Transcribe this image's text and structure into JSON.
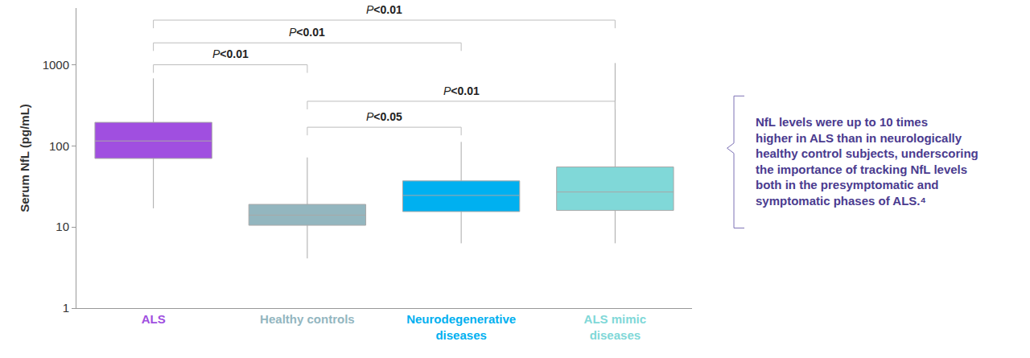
{
  "chart_data": {
    "type": "box",
    "y_label": "Serum NfL (pg/mL)",
    "categories": [
      "ALS",
      "Healthy controls",
      "Neurodegenerative diseases",
      "ALS mimic diseases"
    ],
    "colors": [
      "#a04fe0",
      "#93b6bf",
      "#00b0f0",
      "#80d8d8"
    ],
    "whisker_low": [
      17,
      4.1,
      6.3,
      6.3
    ],
    "q1": [
      70,
      10.5,
      15.5,
      16
    ],
    "median": [
      115,
      14,
      24.5,
      27
    ],
    "q3": [
      195,
      19,
      37,
      55
    ],
    "whisker_high": [
      680,
      72,
      112,
      1050
    ],
    "log": "y",
    "ylim": [
      1,
      5000
    ],
    "yticks": [
      1,
      10,
      100,
      1000
    ],
    "grid": false,
    "comparisons": [
      {
        "from": "ALS",
        "to": "Healthy controls",
        "label": "P<0.01"
      },
      {
        "from": "ALS",
        "to": "Neurodegenerative diseases",
        "label": "P<0.01"
      },
      {
        "from": "ALS",
        "to": "ALS mimic diseases",
        "label": "P<0.01"
      },
      {
        "from": "Healthy controls",
        "to": "ALS mimic diseases",
        "label": "P<0.01"
      },
      {
        "from": "Healthy controls",
        "to": "Neurodegenerative diseases",
        "label": "P<0.05"
      }
    ],
    "annotation": [
      "NfL levels were up to 10 times",
      "higher in ALS than in neurologically",
      "healthy control subjects, underscoring",
      "the importance of tracking NfL levels",
      "both in the presymptomatic and",
      "symptomatic phases of ALS.⁴"
    ]
  }
}
